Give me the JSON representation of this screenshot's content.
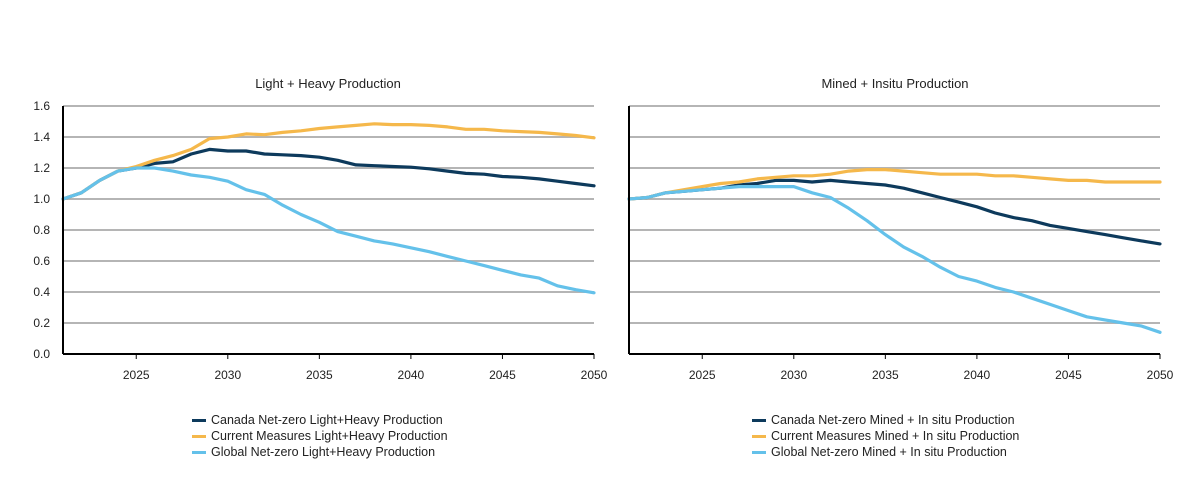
{
  "colors": {
    "canada": "#0d3a5c",
    "current": "#f5b84b",
    "global": "#64c1ea",
    "grid": "#b5b5b5",
    "axis": "#000000"
  },
  "chart_data": [
    {
      "type": "line",
      "title": "Light + Heavy Production",
      "xlabel": "",
      "ylabel": "",
      "xlim": [
        2021,
        2050
      ],
      "ylim": [
        0,
        1.6
      ],
      "xticks": [
        "2025",
        "2030",
        "2035",
        "2040",
        "2045",
        "2050"
      ],
      "yticks": [
        "0.0",
        "0.2",
        "0.4",
        "0.6",
        "0.8",
        "1.0",
        "1.2",
        "1.4",
        "1.6"
      ],
      "grid": true,
      "legend_position": "bottom",
      "x": [
        2021,
        2022,
        2023,
        2024,
        2025,
        2026,
        2027,
        2028,
        2029,
        2030,
        2031,
        2032,
        2033,
        2034,
        2035,
        2036,
        2037,
        2038,
        2039,
        2040,
        2041,
        2042,
        2043,
        2044,
        2045,
        2046,
        2047,
        2048,
        2049,
        2050
      ],
      "series": [
        {
          "name": "Canada Net-zero Light+Heavy Production",
          "color_key": "canada",
          "values": [
            1.0,
            1.04,
            1.12,
            1.18,
            1.2,
            1.23,
            1.24,
            1.29,
            1.32,
            1.31,
            1.31,
            1.29,
            1.285,
            1.28,
            1.27,
            1.25,
            1.22,
            1.215,
            1.21,
            1.205,
            1.195,
            1.18,
            1.165,
            1.16,
            1.145,
            1.14,
            1.13,
            1.115,
            1.1,
            1.085
          ]
        },
        {
          "name": "Current Measures Light+Heavy Production",
          "color_key": "current",
          "values": [
            1.0,
            1.04,
            1.12,
            1.18,
            1.21,
            1.25,
            1.28,
            1.32,
            1.39,
            1.4,
            1.42,
            1.415,
            1.43,
            1.44,
            1.455,
            1.465,
            1.475,
            1.485,
            1.48,
            1.48,
            1.475,
            1.465,
            1.45,
            1.45,
            1.44,
            1.435,
            1.43,
            1.42,
            1.41,
            1.395
          ]
        },
        {
          "name": "Global Net-zero Light+Heavy Production",
          "color_key": "global",
          "values": [
            1.0,
            1.04,
            1.12,
            1.18,
            1.2,
            1.2,
            1.18,
            1.155,
            1.14,
            1.115,
            1.06,
            1.03,
            0.96,
            0.9,
            0.85,
            0.79,
            0.76,
            0.73,
            0.71,
            0.685,
            0.66,
            0.63,
            0.6,
            0.57,
            0.54,
            0.51,
            0.49,
            0.44,
            0.415,
            0.395
          ]
        }
      ]
    },
    {
      "type": "line",
      "title": "Mined + Insitu Production",
      "xlabel": "",
      "ylabel": "",
      "xlim": [
        2021,
        2050
      ],
      "ylim": [
        0,
        1.6
      ],
      "xticks": [
        "2025",
        "2030",
        "2035",
        "2040",
        "2045",
        "2050"
      ],
      "yticks": [],
      "grid": true,
      "legend_position": "bottom",
      "x": [
        2021,
        2022,
        2023,
        2024,
        2025,
        2026,
        2027,
        2028,
        2029,
        2030,
        2031,
        2032,
        2033,
        2034,
        2035,
        2036,
        2037,
        2038,
        2039,
        2040,
        2041,
        2042,
        2043,
        2044,
        2045,
        2046,
        2047,
        2048,
        2049,
        2050
      ],
      "series": [
        {
          "name": "Canada Net-zero Mined + In situ Production",
          "color_key": "canada",
          "values": [
            1.0,
            1.01,
            1.04,
            1.05,
            1.06,
            1.07,
            1.09,
            1.1,
            1.12,
            1.12,
            1.11,
            1.12,
            1.11,
            1.1,
            1.09,
            1.07,
            1.04,
            1.01,
            0.98,
            0.95,
            0.91,
            0.88,
            0.86,
            0.83,
            0.81,
            0.79,
            0.77,
            0.75,
            0.73,
            0.71
          ]
        },
        {
          "name": "Current Measures Mined + In situ Production",
          "color_key": "current",
          "values": [
            1.0,
            1.01,
            1.04,
            1.06,
            1.08,
            1.1,
            1.11,
            1.13,
            1.14,
            1.15,
            1.15,
            1.16,
            1.18,
            1.19,
            1.19,
            1.18,
            1.17,
            1.16,
            1.16,
            1.16,
            1.15,
            1.15,
            1.14,
            1.13,
            1.12,
            1.12,
            1.11,
            1.11,
            1.11,
            1.11
          ]
        },
        {
          "name": "Global Net-zero Mined + In situ Production",
          "color_key": "global",
          "values": [
            1.0,
            1.01,
            1.04,
            1.05,
            1.06,
            1.07,
            1.08,
            1.08,
            1.08,
            1.08,
            1.04,
            1.01,
            0.94,
            0.86,
            0.77,
            0.69,
            0.63,
            0.56,
            0.5,
            0.47,
            0.43,
            0.4,
            0.36,
            0.32,
            0.28,
            0.24,
            0.22,
            0.2,
            0.18,
            0.14
          ]
        }
      ]
    }
  ]
}
